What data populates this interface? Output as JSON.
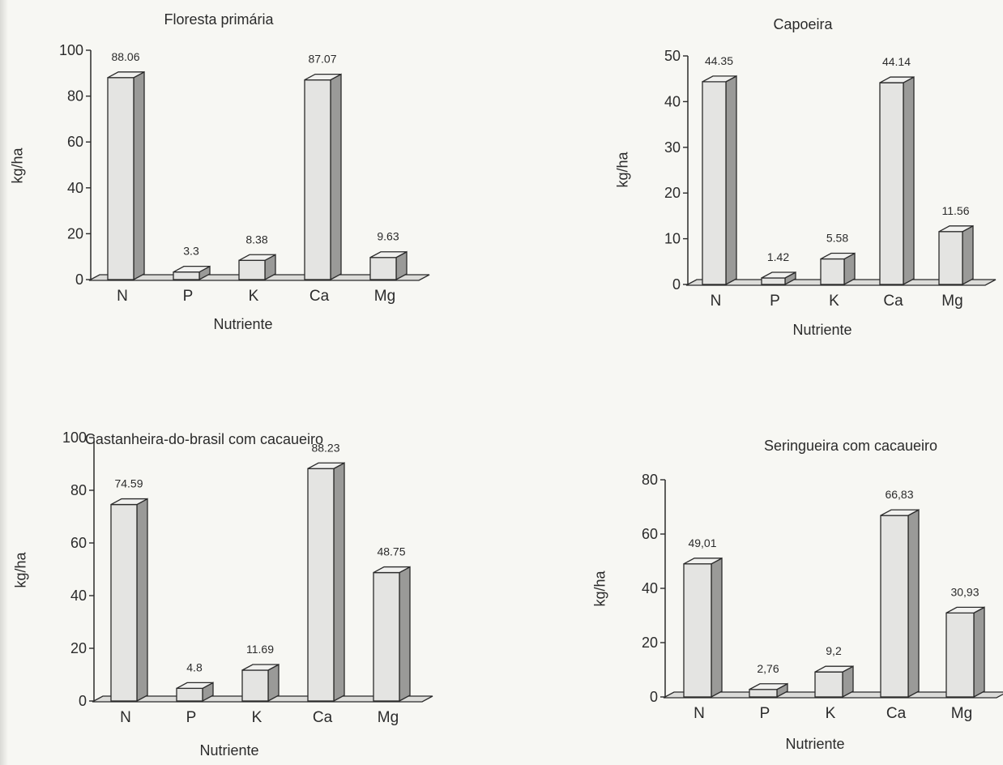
{
  "chart_data": [
    {
      "type": "bar",
      "title": "Floresta primária",
      "xlabel": "Nutriente",
      "ylabel": "kg/ha",
      "categories": [
        "N",
        "P",
        "K",
        "Ca",
        "Mg"
      ],
      "values": [
        88.06,
        3.3,
        8.38,
        87.07,
        9.63
      ],
      "data_labels": [
        "88.06",
        "3.3",
        "8.38",
        "87.07",
        "9.63"
      ],
      "ylim": [
        0,
        100
      ],
      "yticks": [
        0,
        20,
        40,
        60,
        80,
        100
      ],
      "grid": false,
      "style": "3d"
    },
    {
      "type": "bar",
      "title": "Capoeira",
      "xlabel": "Nutriente",
      "ylabel": "kg/ha",
      "categories": [
        "N",
        "P",
        "K",
        "Ca",
        "Mg"
      ],
      "values": [
        44.35,
        1.42,
        5.58,
        44.14,
        11.56
      ],
      "data_labels": [
        "44.35",
        "1.42",
        "5.58",
        "44.14",
        "11.56"
      ],
      "ylim": [
        0,
        50
      ],
      "yticks": [
        0,
        10,
        20,
        30,
        40,
        50
      ],
      "grid": false,
      "style": "3d"
    },
    {
      "type": "bar",
      "title": "Castanheira-do-brasil com cacaueiro",
      "xlabel": "Nutriente",
      "ylabel": "kg/ha",
      "categories": [
        "N",
        "P",
        "K",
        "Ca",
        "Mg"
      ],
      "values": [
        74.59,
        4.8,
        11.69,
        88.23,
        48.75
      ],
      "data_labels": [
        "74.59",
        "4.8",
        "11.69",
        "88.23",
        "48.75"
      ],
      "ylim": [
        0,
        100
      ],
      "yticks": [
        0,
        20,
        40,
        60,
        80,
        100
      ],
      "grid": false,
      "style": "3d"
    },
    {
      "type": "bar",
      "title": "Seringueira com cacaueiro",
      "xlabel": "Nutriente",
      "ylabel": "kg/ha",
      "categories": [
        "N",
        "P",
        "K",
        "Ca",
        "Mg"
      ],
      "values": [
        49.01,
        2.76,
        9.2,
        66.83,
        30.93
      ],
      "data_labels": [
        "49,01",
        "2,76",
        "9,2",
        "66,83",
        "30,93"
      ],
      "ylim": [
        0,
        80
      ],
      "yticks": [
        0,
        20,
        40,
        60,
        80
      ],
      "grid": false,
      "style": "3d"
    }
  ],
  "colors": {
    "bar_front": "#e4e4e2",
    "bar_side": "#9a9a98",
    "bar_top": "#f1f1ef",
    "outline": "#2b2b2b",
    "axis": "#2b2b2b",
    "background": "#f7f7f3"
  }
}
